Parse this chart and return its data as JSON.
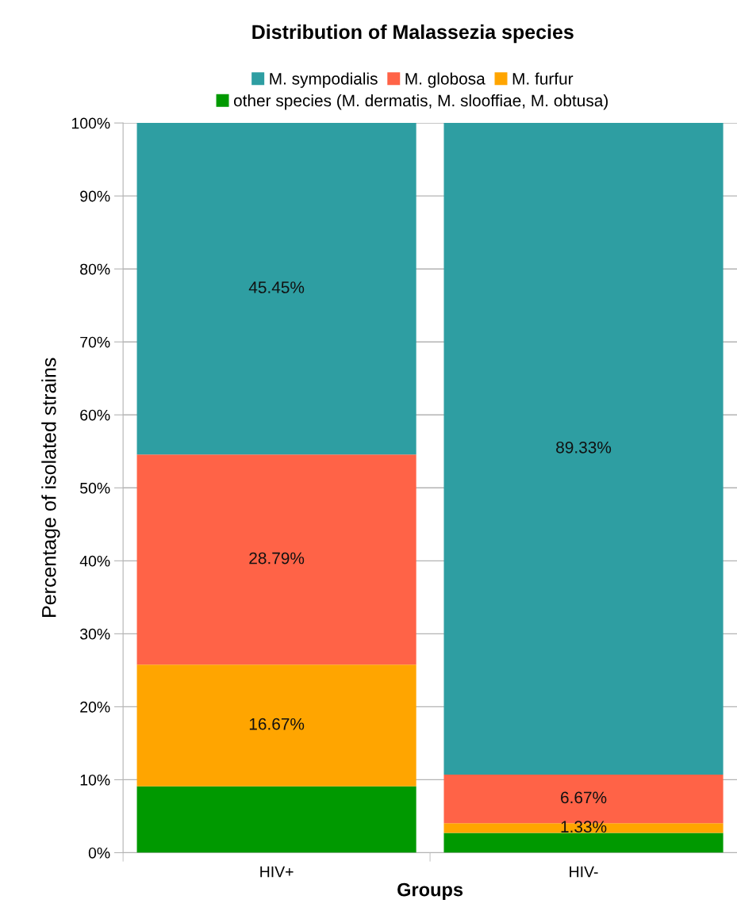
{
  "chart_data": {
    "type": "bar",
    "stacked": true,
    "title": "Distribution of Malassezia species",
    "xlabel": "Groups",
    "ylabel": "Percentage of isolated strains",
    "categories": [
      "HIV+",
      "HIV-"
    ],
    "series": [
      {
        "name": "other species (M. dermatis, M. slooffiae, M. obtusa)",
        "color": "#009900",
        "values": [
          9.1,
          2.7
        ]
      },
      {
        "name": "M. furfur",
        "color": "#ffa500",
        "values": [
          16.67,
          1.33
        ],
        "value_labels": [
          "16.67%",
          "1.33%"
        ]
      },
      {
        "name": "M. globosa",
        "color": "#ff6347",
        "values": [
          28.79,
          6.67
        ],
        "value_labels": [
          "28.79%",
          "6.67%"
        ]
      },
      {
        "name": "M. sympodialis",
        "color": "#2e9ea2",
        "values": [
          45.45,
          89.33
        ],
        "value_labels": [
          "45.45%",
          "89.33%"
        ]
      }
    ],
    "ylim": [
      0,
      100
    ],
    "yticks": [
      {
        "value": 0,
        "label": "0%"
      },
      {
        "value": 10,
        "label": "10%"
      },
      {
        "value": 20,
        "label": "20%"
      },
      {
        "value": 30,
        "label": "30%"
      },
      {
        "value": 40,
        "label": "40%"
      },
      {
        "value": 50,
        "label": "50%"
      },
      {
        "value": 60,
        "label": "60%"
      },
      {
        "value": 70,
        "label": "70%"
      },
      {
        "value": 80,
        "label": "80%"
      },
      {
        "value": 90,
        "label": "90%"
      },
      {
        "value": 100,
        "label": "100%"
      }
    ],
    "grid": "y",
    "legend": "top"
  }
}
